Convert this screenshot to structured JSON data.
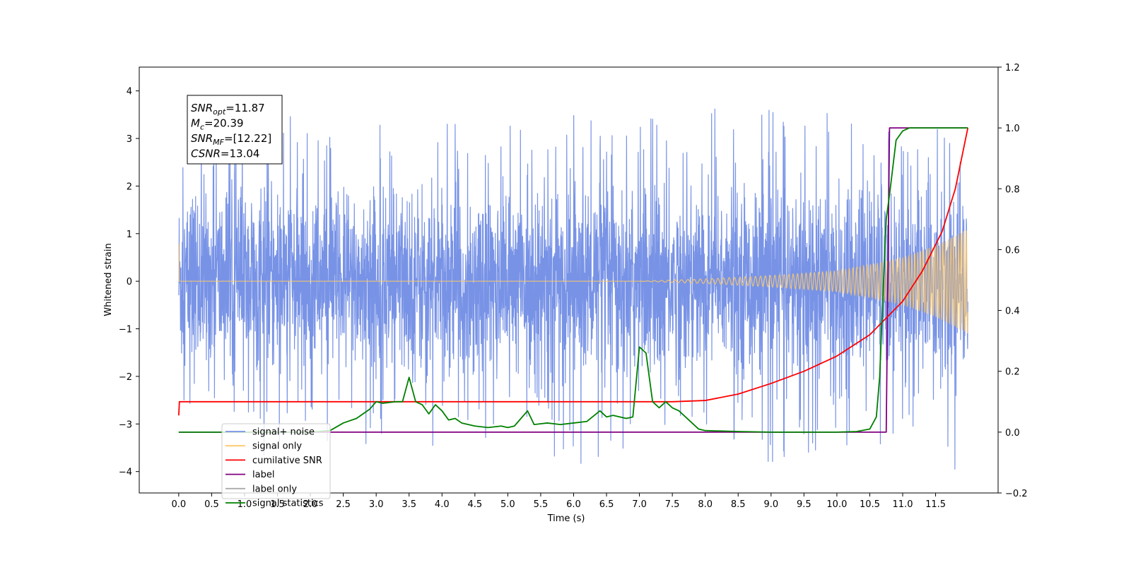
{
  "chart_data": {
    "type": "line",
    "xlabel": "Time (s)",
    "ylabel_left": "Whitened strain",
    "ylabel_right": "",
    "xlim": [
      -0.6,
      12.45
    ],
    "ylim_left": [
      -4.45,
      4.5
    ],
    "ylim_right": [
      -0.2,
      1.2
    ],
    "x_ticks": [
      0.0,
      0.5,
      1.0,
      1.5,
      2.0,
      2.5,
      3.0,
      3.5,
      4.0,
      4.5,
      5.0,
      5.5,
      6.0,
      6.5,
      7.0,
      7.5,
      8.0,
      8.5,
      9.0,
      9.5,
      10.0,
      10.5,
      11.0,
      11.5
    ],
    "x_tick_labels": [
      "0.0",
      "0.5",
      "1.0",
      "1.5",
      "2.0",
      "2.5",
      "3.0",
      "3.5",
      "4.0",
      "4.5",
      "5.0",
      "5.5",
      "6.0",
      "6.5",
      "7.0",
      "7.5",
      "8.0",
      "8.5",
      "9.0",
      "9.5",
      "10.0",
      "10.5",
      "11.0",
      "11.5"
    ],
    "y_ticks_left": [
      -4,
      -3,
      -2,
      -1,
      0,
      1,
      2,
      3,
      4
    ],
    "y_tick_labels_left": [
      "−4",
      "−3",
      "−2",
      "−1",
      "0",
      "1",
      "2",
      "3",
      "4"
    ],
    "y_ticks_right": [
      -0.2,
      0.0,
      0.2,
      0.4,
      0.6,
      0.8,
      1.0,
      1.2
    ],
    "y_tick_labels_right": [
      "−0.2",
      "0.0",
      "0.2",
      "0.4",
      "0.6",
      "0.8",
      "1.0",
      "1.2"
    ],
    "grid": false,
    "legend_position": "lower-left",
    "stats_box": [
      {
        "var": "SNR",
        "sub": "opt",
        "value": "=11.87"
      },
      {
        "var": "M",
        "sub": "c",
        "value": "=20.39"
      },
      {
        "var": "SNR",
        "sub": "MF",
        "value": "=[12.22]"
      },
      {
        "var": "CSNR",
        "sub": "",
        "value": "=13.04"
      }
    ],
    "series": [
      {
        "name": "signal+ noise",
        "axis": "left",
        "color": "#7893e6",
        "description_x_range": [
          0.0,
          11.99
        ],
        "envelope_x": [
          0.0,
          1.0,
          2.0,
          3.0,
          4.0,
          5.0,
          6.0,
          7.0,
          8.0,
          9.0,
          10.0,
          11.0,
          11.99
        ],
        "envelope_max": [
          3.2,
          3.6,
          3.6,
          3.3,
          3.3,
          3.3,
          3.5,
          3.5,
          3.7,
          3.6,
          3.6,
          3.6,
          3.5
        ],
        "envelope_min": [
          -3.0,
          -3.85,
          -3.3,
          -3.5,
          -3.45,
          -3.2,
          -4.05,
          -3.4,
          -3.3,
          -3.85,
          -3.4,
          -3.4,
          -3.6
        ]
      },
      {
        "name": "signal only",
        "axis": "left",
        "color": "#ffc966",
        "chirp_x": [
          0.0,
          7.0,
          8.0,
          9.0,
          10.0,
          10.5,
          11.0,
          11.5,
          11.99
        ],
        "chirp_amplitude": [
          0.0,
          0.0,
          0.05,
          0.12,
          0.22,
          0.35,
          0.5,
          0.75,
          1.1
        ],
        "initial_spike": 0.8
      },
      {
        "name": "cumilative SNR",
        "axis": "right",
        "color": "#ff0000",
        "x": [
          0.0,
          0.01,
          1.0,
          2.0,
          3.0,
          4.0,
          5.0,
          6.0,
          7.0,
          7.5,
          8.0,
          8.5,
          9.0,
          9.5,
          10.0,
          10.5,
          11.0,
          11.3,
          11.6,
          11.8,
          11.99
        ],
        "y": [
          0.055,
          0.1,
          0.1,
          0.1,
          0.1,
          0.1,
          0.1,
          0.1,
          0.1,
          0.1,
          0.104,
          0.125,
          0.16,
          0.2,
          0.25,
          0.32,
          0.43,
          0.53,
          0.66,
          0.8,
          1.0
        ]
      },
      {
        "name": "label",
        "axis": "right",
        "color": "#800080",
        "x": [
          0.0,
          10.75,
          10.8,
          11.99
        ],
        "y": [
          0.0,
          0.0,
          1.0,
          1.0
        ]
      },
      {
        "name": "label only",
        "axis": "right",
        "color": "#aaaaaa",
        "x": [],
        "y": []
      },
      {
        "name": "signal statistics",
        "axis": "right",
        "color": "#008000",
        "x": [
          0.0,
          2.0,
          2.3,
          2.5,
          2.7,
          2.9,
          3.0,
          3.1,
          3.3,
          3.4,
          3.5,
          3.6,
          3.7,
          3.8,
          3.9,
          4.0,
          4.1,
          4.2,
          4.3,
          4.5,
          4.7,
          4.9,
          5.0,
          5.1,
          5.3,
          5.4,
          5.6,
          5.8,
          6.0,
          6.2,
          6.4,
          6.5,
          6.6,
          6.8,
          6.9,
          7.0,
          7.1,
          7.2,
          7.3,
          7.4,
          7.5,
          7.6,
          7.7,
          7.8,
          7.9,
          8.0,
          8.5,
          9.0,
          9.5,
          10.0,
          10.3,
          10.5,
          10.6,
          10.65,
          10.7,
          10.75,
          10.8,
          10.9,
          11.0,
          11.1,
          11.3,
          11.5,
          11.8,
          11.99
        ],
        "y": [
          0.0,
          0.0,
          0.005,
          0.03,
          0.045,
          0.075,
          0.1,
          0.095,
          0.1,
          0.1,
          0.18,
          0.1,
          0.09,
          0.06,
          0.09,
          0.07,
          0.04,
          0.045,
          0.03,
          0.02,
          0.015,
          0.02,
          0.015,
          0.02,
          0.07,
          0.025,
          0.03,
          0.025,
          0.03,
          0.035,
          0.07,
          0.05,
          0.055,
          0.045,
          0.05,
          0.28,
          0.26,
          0.1,
          0.08,
          0.1,
          0.08,
          0.07,
          0.05,
          0.03,
          0.01,
          0.005,
          0.002,
          0.0,
          0.0,
          0.0,
          0.002,
          0.01,
          0.05,
          0.18,
          0.45,
          0.7,
          0.78,
          0.96,
          0.99,
          1.0,
          1.0,
          1.0,
          1.0,
          1.0
        ]
      }
    ]
  }
}
